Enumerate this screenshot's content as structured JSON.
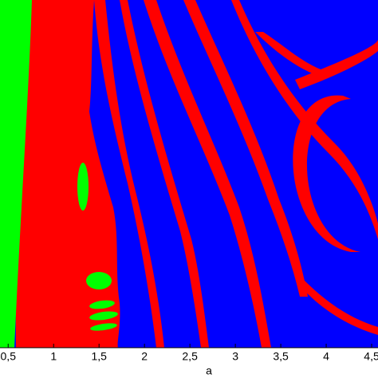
{
  "chart_data": {
    "type": "basin",
    "xlabel": "a",
    "xlim": [
      0.41,
      4.57
    ],
    "xticks": [
      {
        "value": 0.5,
        "label": "0,5"
      },
      1,
      {
        "value": 1.5,
        "label": "1,5"
      },
      2,
      {
        "value": 2.5,
        "label": "2,5"
      },
      3,
      {
        "value": 3.5,
        "label": "3,5"
      },
      4,
      {
        "value": 4.5,
        "label": "4,5"
      }
    ]
  }
}
